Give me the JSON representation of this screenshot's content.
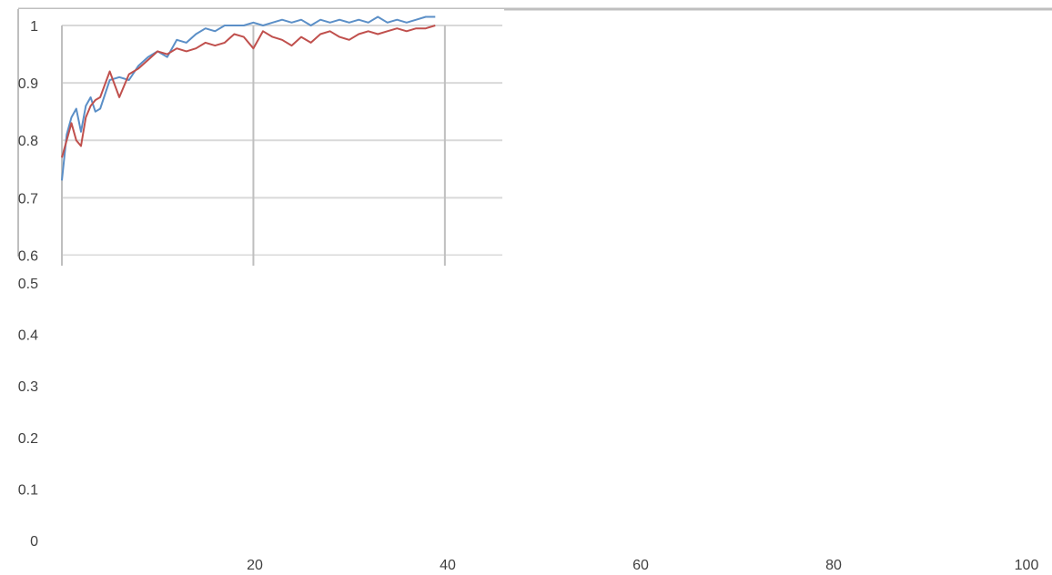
{
  "chart_data": {
    "type": "line",
    "title": "",
    "xlabel": "",
    "ylabel": "",
    "xlim": [
      0,
      100
    ],
    "ylim": [
      0,
      1
    ],
    "x_ticks": [
      20,
      40,
      60,
      80,
      100
    ],
    "y_ticks": [
      0,
      0.1,
      0.2,
      0.3,
      0.4,
      0.5,
      0.6,
      0.7,
      0.8,
      0.9,
      1
    ],
    "grid": true,
    "legend": "none",
    "colors": {
      "series_blue": "#5b8fc7",
      "series_red": "#c0504d",
      "grid": "#d9d9d9",
      "axis": "#bfbfbf"
    },
    "series": [
      {
        "color": "#5b8fc7",
        "x": [
          0,
          0.5,
          1,
          1.5,
          2,
          2.5,
          3,
          3.5,
          4,
          5,
          6,
          7,
          8,
          9,
          10,
          11,
          12,
          13,
          14,
          15,
          16,
          17,
          18,
          19,
          20,
          21,
          22,
          23,
          24,
          25,
          26,
          27,
          28,
          29,
          30,
          31,
          32,
          33,
          34,
          35,
          36,
          37,
          38,
          39
        ],
        "values": [
          0.73,
          0.81,
          0.84,
          0.855,
          0.815,
          0.86,
          0.875,
          0.85,
          0.855,
          0.905,
          0.91,
          0.905,
          0.93,
          0.945,
          0.955,
          0.945,
          0.975,
          0.97,
          0.985,
          0.995,
          0.99,
          1.0,
          1.0,
          1.0,
          1.005,
          1.0,
          1.005,
          1.01,
          1.005,
          1.01,
          1.0,
          1.01,
          1.005,
          1.01,
          1.005,
          1.01,
          1.005,
          1.015,
          1.005,
          1.01,
          1.005,
          1.01,
          1.015,
          1.015
        ]
      },
      {
        "color": "#c0504d",
        "x": [
          0,
          0.5,
          1,
          1.5,
          2,
          2.5,
          3,
          3.5,
          4,
          5,
          6,
          7,
          8,
          9,
          10,
          11,
          12,
          13,
          14,
          15,
          16,
          17,
          18,
          19,
          20,
          21,
          22,
          23,
          24,
          25,
          26,
          27,
          28,
          29,
          30,
          31,
          32,
          33,
          34,
          35,
          36,
          37,
          38,
          39
        ],
        "values": [
          0.77,
          0.8,
          0.83,
          0.8,
          0.79,
          0.84,
          0.86,
          0.87,
          0.875,
          0.92,
          0.875,
          0.915,
          0.925,
          0.94,
          0.955,
          0.95,
          0.96,
          0.955,
          0.96,
          0.97,
          0.965,
          0.97,
          0.985,
          0.98,
          0.96,
          0.99,
          0.98,
          0.975,
          0.965,
          0.98,
          0.97,
          0.985,
          0.99,
          0.98,
          0.975,
          0.985,
          0.99,
          0.985,
          0.99,
          0.995,
          0.99,
          0.995,
          0.995,
          1.0
        ]
      }
    ]
  },
  "inset": {
    "y_ticks": [
      0.6,
      0.7,
      0.8,
      0.9,
      1
    ]
  }
}
